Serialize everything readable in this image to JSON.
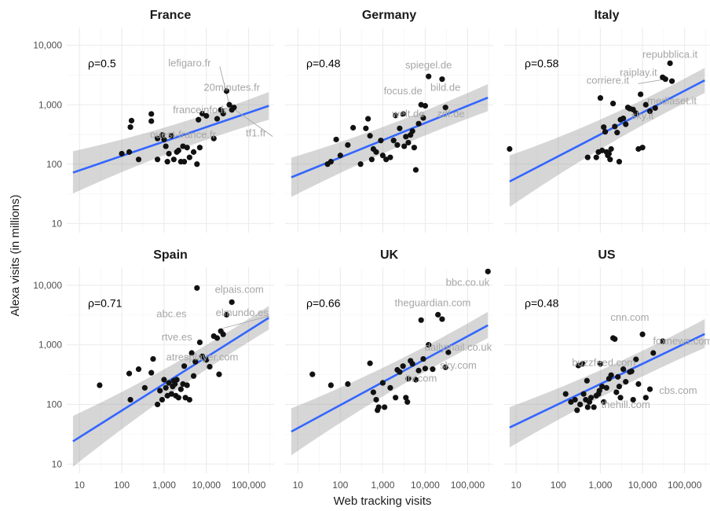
{
  "chart_data": {
    "type": "scatter",
    "layout": "facet grid, 2 rows x 3 columns, shared log-scale axes",
    "xlabel": "Web tracking visits",
    "ylabel": "Alexa visits (in millions)",
    "x_scale": "log10",
    "y_scale": "log10",
    "xlim": [
      5,
      400000
    ],
    "ylim": [
      7,
      20000
    ],
    "x_ticks": [
      10,
      100,
      1000,
      10000,
      100000
    ],
    "x_tick_labels": [
      "10",
      "100",
      "1,000",
      "10,000",
      "100,000"
    ],
    "y_ticks": [
      10,
      100,
      1000,
      10000
    ],
    "y_tick_labels": [
      "10",
      "100",
      "1,000",
      "10,000"
    ],
    "grid": true,
    "trend_color": "#3366ff",
    "band_color": "#999999",
    "point_color": "#111111",
    "label_color": "#a6a6a6",
    "panels": [
      {
        "title": "France",
        "rho": "ρ=0.5",
        "trend": {
          "x": [
            7,
            300000
          ],
          "y": [
            72,
            960
          ],
          "band_low": [
            32,
            560
          ],
          "band_high": [
            165,
            1640
          ]
        },
        "points": [
          [
            100,
            150
          ],
          [
            150,
            160
          ],
          [
            160,
            420
          ],
          [
            170,
            540
          ],
          [
            250,
            120
          ],
          [
            500,
            700
          ],
          [
            500,
            530
          ],
          [
            700,
            120
          ],
          [
            700,
            270
          ],
          [
            900,
            310
          ],
          [
            1000,
            260
          ],
          [
            1100,
            200
          ],
          [
            1200,
            110
          ],
          [
            1300,
            150
          ],
          [
            1500,
            300
          ],
          [
            1700,
            120
          ],
          [
            2000,
            160
          ],
          [
            2200,
            170
          ],
          [
            2500,
            110
          ],
          [
            2800,
            200
          ],
          [
            3000,
            110
          ],
          [
            3500,
            190
          ],
          [
            4000,
            130
          ],
          [
            5000,
            160
          ],
          [
            6000,
            100
          ],
          [
            6500,
            560
          ],
          [
            7000,
            190
          ],
          [
            8000,
            710
          ],
          [
            10000,
            650
          ],
          [
            15000,
            270
          ],
          [
            18000,
            580
          ],
          [
            22000,
            820
          ],
          [
            25000,
            710
          ],
          [
            30000,
            1700
          ],
          [
            35000,
            1000
          ],
          [
            40000,
            820
          ],
          [
            45000,
            900
          ]
        ],
        "labels": [
          {
            "text": "lefigaro.fr",
            "x": 4000,
            "y": 5000,
            "px": 35000,
            "py": 1000
          },
          {
            "text": "20minutes.fr",
            "x": 40000,
            "y": 1950
          },
          {
            "text": "franceinfo.fr",
            "x": 7000,
            "y": 820,
            "text_shown": "franceinfo.fr"
          },
          {
            "text": "tf1.fr",
            "x": 150000,
            "y": 330,
            "px": 40000,
            "py": 900
          },
          {
            "text": "ouest-france.fr",
            "x": 2800,
            "y": 310
          }
        ]
      },
      {
        "title": "Germany",
        "rho": "ρ=0.48",
        "trend": {
          "x": [
            7,
            300000
          ],
          "y": [
            60,
            1320
          ],
          "band_low": [
            28,
            780
          ],
          "band_high": [
            128,
            2230
          ]
        },
        "points": [
          [
            50,
            100
          ],
          [
            60,
            110
          ],
          [
            80,
            260
          ],
          [
            100,
            140
          ],
          [
            150,
            210
          ],
          [
            200,
            410
          ],
          [
            300,
            100
          ],
          [
            400,
            400
          ],
          [
            450,
            580
          ],
          [
            500,
            300
          ],
          [
            550,
            120
          ],
          [
            600,
            180
          ],
          [
            700,
            160
          ],
          [
            900,
            250
          ],
          [
            1000,
            140
          ],
          [
            1200,
            120
          ],
          [
            1500,
            130
          ],
          [
            1800,
            250
          ],
          [
            2000,
            660
          ],
          [
            2200,
            210
          ],
          [
            2500,
            400
          ],
          [
            3000,
            700
          ],
          [
            3200,
            200
          ],
          [
            3500,
            290
          ],
          [
            4000,
            230
          ],
          [
            4500,
            310
          ],
          [
            5000,
            360
          ],
          [
            5500,
            190
          ],
          [
            6000,
            80
          ],
          [
            7000,
            480
          ],
          [
            8000,
            1000
          ],
          [
            9000,
            600
          ],
          [
            10000,
            960
          ],
          [
            12000,
            3000
          ],
          [
            25000,
            2700
          ],
          [
            30000,
            900
          ]
        ],
        "labels": [
          {
            "text": "spiegel.de",
            "x": 12000,
            "y": 4600
          },
          {
            "text": "bild.de",
            "x": 30000,
            "y": 1950
          },
          {
            "text": "focus.de",
            "x": 3000,
            "y": 1700
          },
          {
            "text": "welt.de",
            "x": 4000,
            "y": 700
          },
          {
            "text": "zdf.de",
            "x": 40000,
            "y": 700
          }
        ]
      },
      {
        "title": "Italy",
        "rho": "ρ=0.58",
        "trend": {
          "x": [
            7,
            300000
          ],
          "y": [
            51,
            2580
          ],
          "band_low": [
            19,
            1580
          ],
          "band_high": [
            140,
            4200
          ]
        },
        "points": [
          [
            7,
            180
          ],
          [
            500,
            130
          ],
          [
            800,
            130
          ],
          [
            900,
            160
          ],
          [
            1000,
            1300
          ],
          [
            1100,
            170
          ],
          [
            1200,
            420
          ],
          [
            1300,
            350
          ],
          [
            1400,
            160
          ],
          [
            1500,
            140
          ],
          [
            1600,
            150
          ],
          [
            1700,
            120
          ],
          [
            1800,
            180
          ],
          [
            2000,
            1050
          ],
          [
            2200,
            430
          ],
          [
            2500,
            340
          ],
          [
            2800,
            110
          ],
          [
            3000,
            560
          ],
          [
            3500,
            590
          ],
          [
            4000,
            470
          ],
          [
            4500,
            900
          ],
          [
            5000,
            860
          ],
          [
            6000,
            830
          ],
          [
            7000,
            720
          ],
          [
            8000,
            180
          ],
          [
            9000,
            1500
          ],
          [
            10000,
            190
          ],
          [
            12000,
            1000
          ],
          [
            15000,
            780
          ],
          [
            20000,
            880
          ],
          [
            30000,
            2900
          ],
          [
            35000,
            2700
          ],
          [
            45000,
            5000
          ],
          [
            50000,
            2500
          ]
        ],
        "labels": [
          {
            "text": "repubblica.it",
            "x": 45000,
            "y": 7000
          },
          {
            "text": "raiplay.it",
            "x": 8000,
            "y": 3450,
            "px": 30000,
            "py": 3000
          },
          {
            "text": "corriere.it",
            "x": 1500,
            "y": 2550,
            "px": 35000,
            "py": 2700
          },
          {
            "text": "mediaset.it",
            "x": 50000,
            "y": 1150
          },
          {
            "text": "sky.it",
            "x": 10000,
            "y": 650
          }
        ]
      },
      {
        "title": "Spain",
        "rho": "ρ=0.71",
        "trend": {
          "x": [
            7,
            300000
          ],
          "y": [
            24,
            2840
          ],
          "band_low": [
            9,
            1800
          ],
          "band_high": [
            64,
            4500
          ]
        },
        "points": [
          [
            30,
            210
          ],
          [
            150,
            330
          ],
          [
            160,
            120
          ],
          [
            250,
            390
          ],
          [
            350,
            190
          ],
          [
            500,
            340
          ],
          [
            550,
            580
          ],
          [
            700,
            100
          ],
          [
            800,
            170
          ],
          [
            900,
            120
          ],
          [
            1000,
            260
          ],
          [
            1100,
            190
          ],
          [
            1200,
            140
          ],
          [
            1300,
            230
          ],
          [
            1500,
            150
          ],
          [
            1600,
            200
          ],
          [
            1700,
            250
          ],
          [
            1800,
            220
          ],
          [
            1900,
            140
          ],
          [
            2000,
            260
          ],
          [
            2200,
            130
          ],
          [
            2500,
            180
          ],
          [
            2800,
            220
          ],
          [
            3000,
            440
          ],
          [
            3200,
            130
          ],
          [
            3500,
            210
          ],
          [
            4000,
            120
          ],
          [
            4500,
            730
          ],
          [
            5000,
            300
          ],
          [
            5500,
            520
          ],
          [
            6000,
            9000
          ],
          [
            7000,
            1100
          ],
          [
            8000,
            640
          ],
          [
            10000,
            560
          ],
          [
            12000,
            430
          ],
          [
            15000,
            1400
          ],
          [
            18000,
            1300
          ],
          [
            20000,
            320
          ],
          [
            22000,
            1700
          ],
          [
            25000,
            1500
          ],
          [
            30000,
            3200
          ],
          [
            40000,
            5200
          ]
        ],
        "labels": [
          {
            "text": "elpais.com",
            "x": 60000,
            "y": 8400
          },
          {
            "text": "abc.es",
            "x": 1500,
            "y": 3300
          },
          {
            "text": "elmundo.es",
            "x": 70000,
            "y": 3450,
            "px": 25000,
            "py": 1900
          },
          {
            "text": "rtve.es",
            "x": 2000,
            "y": 1350
          },
          {
            "text": "atresplayer.com",
            "x": 8000,
            "y": 620
          }
        ]
      },
      {
        "title": "UK",
        "rho": "ρ=0.66",
        "trend": {
          "x": [
            7,
            300000
          ],
          "y": [
            35,
            2130
          ],
          "band_low": [
            14,
            1300
          ],
          "band_high": [
            86,
            3580
          ]
        },
        "points": [
          [
            22,
            320
          ],
          [
            60,
            210
          ],
          [
            150,
            220
          ],
          [
            500,
            490
          ],
          [
            600,
            160
          ],
          [
            700,
            120
          ],
          [
            750,
            80
          ],
          [
            800,
            90
          ],
          [
            1000,
            230
          ],
          [
            1100,
            90
          ],
          [
            1500,
            190
          ],
          [
            2000,
            130
          ],
          [
            2200,
            380
          ],
          [
            2500,
            350
          ],
          [
            3000,
            440
          ],
          [
            3500,
            130
          ],
          [
            3800,
            110
          ],
          [
            4000,
            270
          ],
          [
            4500,
            540
          ],
          [
            5000,
            480
          ],
          [
            6000,
            260
          ],
          [
            7000,
            370
          ],
          [
            8000,
            2600
          ],
          [
            9000,
            580
          ],
          [
            10000,
            400
          ],
          [
            12000,
            1000
          ],
          [
            15000,
            390
          ],
          [
            20000,
            3200
          ],
          [
            25000,
            2700
          ],
          [
            30000,
            420
          ],
          [
            35000,
            750
          ],
          [
            300000,
            17000
          ]
        ],
        "labels": [
          {
            "text": "bbc.co.uk",
            "x": 100000,
            "y": 11000
          },
          {
            "text": "theguardian.com",
            "x": 15000,
            "y": 5000
          },
          {
            "text": "dailymail.co.uk",
            "x": 60000,
            "y": 900
          },
          {
            "text": "sky.com",
            "x": 60000,
            "y": 450
          },
          {
            "text": "itv.com",
            "x": 8000,
            "y": 270
          }
        ]
      },
      {
        "title": "US",
        "rho": "ρ=0.48",
        "trend": {
          "x": [
            7,
            300000
          ],
          "y": [
            41,
            1520
          ],
          "band_low": [
            19,
            890
          ],
          "band_high": [
            90,
            2700
          ]
        },
        "points": [
          [
            150,
            150
          ],
          [
            200,
            110
          ],
          [
            250,
            120
          ],
          [
            280,
            80
          ],
          [
            300,
            450
          ],
          [
            330,
            100
          ],
          [
            380,
            480
          ],
          [
            400,
            150
          ],
          [
            450,
            120
          ],
          [
            480,
            250
          ],
          [
            500,
            90
          ],
          [
            550,
            110
          ],
          [
            600,
            130
          ],
          [
            700,
            90
          ],
          [
            800,
            140
          ],
          [
            900,
            150
          ],
          [
            950,
            170
          ],
          [
            1000,
            480
          ],
          [
            1100,
            200
          ],
          [
            1200,
            110
          ],
          [
            1400,
            190
          ],
          [
            1600,
            270
          ],
          [
            1800,
            310
          ],
          [
            2000,
            1300
          ],
          [
            2200,
            1250
          ],
          [
            2400,
            160
          ],
          [
            2600,
            290
          ],
          [
            2800,
            200
          ],
          [
            3000,
            130
          ],
          [
            3500,
            390
          ],
          [
            4000,
            240
          ],
          [
            5000,
            350
          ],
          [
            5500,
            360
          ],
          [
            6000,
            120
          ],
          [
            7000,
            570
          ],
          [
            8000,
            220
          ],
          [
            10000,
            1500
          ],
          [
            12000,
            130
          ],
          [
            15000,
            180
          ],
          [
            18000,
            730
          ],
          [
            30000,
            1150
          ]
        ],
        "labels": [
          {
            "text": "cnn.com",
            "x": 5000,
            "y": 2850
          },
          {
            "text": "foxnews.com",
            "x": 90000,
            "y": 1150
          },
          {
            "text": "buzzfeed.com",
            "x": 1200,
            "y": 500
          },
          {
            "text": "cbs.com",
            "x": 70000,
            "y": 170
          },
          {
            "text": "thehill.com",
            "x": 4000,
            "y": 98
          }
        ]
      }
    ]
  }
}
